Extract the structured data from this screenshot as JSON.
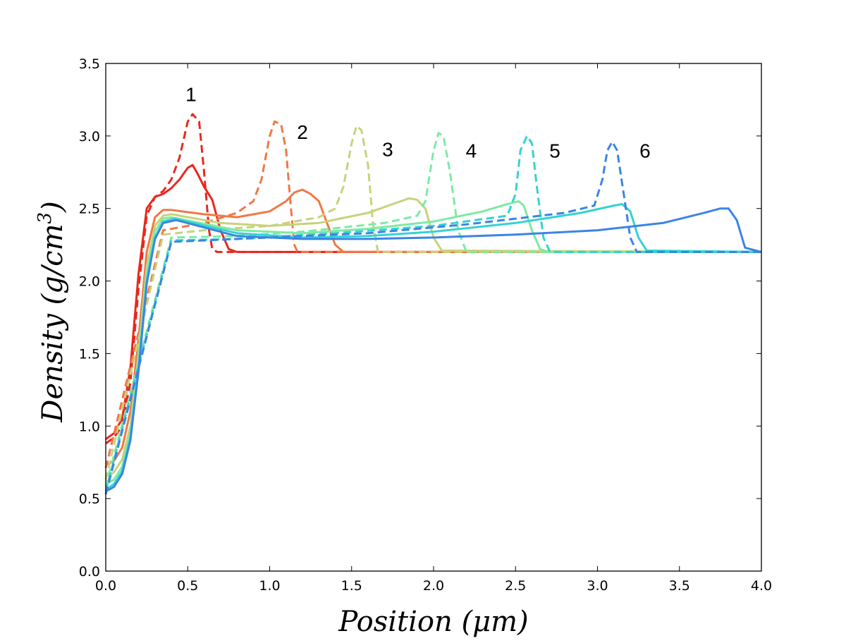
{
  "chart_data": {
    "type": "line",
    "title": "",
    "xlabel": "Position (μm)",
    "ylabel_parts": [
      "Density (g/cm",
      "3",
      ")"
    ],
    "xlim": [
      0.0,
      4.0
    ],
    "ylim": [
      0.0,
      3.5
    ],
    "xticks": [
      0.0,
      0.5,
      1.0,
      1.5,
      2.0,
      2.5,
      3.0,
      3.5,
      4.0
    ],
    "yticks": [
      0.0,
      0.5,
      1.0,
      1.5,
      2.0,
      2.5,
      3.0,
      3.5
    ],
    "xtick_labels": [
      "0.0",
      "0.5",
      "1.0",
      "1.5",
      "2.0",
      "2.5",
      "3.0",
      "3.5",
      "4.0"
    ],
    "ytick_labels": [
      "0.0",
      "0.5",
      "1.0",
      "1.5",
      "2.0",
      "2.5",
      "3.0",
      "3.5"
    ],
    "series": [
      {
        "name": "solid-1",
        "style": "solid",
        "color": "#e8281e",
        "x": [
          0.0,
          0.05,
          0.1,
          0.15,
          0.2,
          0.25,
          0.3,
          0.35,
          0.4,
          0.45,
          0.5,
          0.53,
          0.56,
          0.6,
          0.65,
          0.7,
          0.75,
          0.8,
          4.0
        ],
        "y": [
          0.91,
          0.95,
          1.05,
          1.4,
          2.05,
          2.5,
          2.58,
          2.6,
          2.64,
          2.7,
          2.78,
          2.8,
          2.74,
          2.65,
          2.56,
          2.35,
          2.22,
          2.2,
          2.2
        ]
      },
      {
        "name": "dashed-1",
        "style": "dashed",
        "color": "#e8281e",
        "x": [
          0.0,
          0.05,
          0.1,
          0.15,
          0.2,
          0.25,
          0.3,
          0.35,
          0.4,
          0.45,
          0.5,
          0.53,
          0.57,
          0.6,
          0.63,
          0.65,
          0.68,
          4.0
        ],
        "y": [
          0.88,
          0.92,
          1.0,
          1.3,
          1.95,
          2.45,
          2.58,
          2.62,
          2.7,
          2.85,
          3.1,
          3.15,
          3.1,
          2.75,
          2.35,
          2.22,
          2.2,
          2.2
        ]
      },
      {
        "name": "solid-2",
        "style": "solid",
        "color": "#f07845",
        "x": [
          0.0,
          0.05,
          0.1,
          0.15,
          0.2,
          0.25,
          0.3,
          0.35,
          0.4,
          0.6,
          0.8,
          1.0,
          1.1,
          1.15,
          1.2,
          1.25,
          1.3,
          1.35,
          1.4,
          1.45,
          4.0
        ],
        "y": [
          0.73,
          0.76,
          0.85,
          1.1,
          1.6,
          2.2,
          2.44,
          2.49,
          2.49,
          2.46,
          2.44,
          2.48,
          2.55,
          2.61,
          2.63,
          2.6,
          2.55,
          2.4,
          2.25,
          2.2,
          2.2
        ]
      },
      {
        "name": "dashed-2",
        "style": "dashed",
        "color": "#f07845",
        "x": [
          0.0,
          0.35,
          0.6,
          0.8,
          0.9,
          0.95,
          1.0,
          1.03,
          1.07,
          1.1,
          1.13,
          1.15,
          1.17,
          4.0
        ],
        "y": [
          0.71,
          2.35,
          2.4,
          2.47,
          2.55,
          2.7,
          3.0,
          3.1,
          3.08,
          2.9,
          2.5,
          2.25,
          2.2,
          2.2
        ]
      },
      {
        "name": "solid-3",
        "style": "solid",
        "color": "#c8d27a",
        "x": [
          0.0,
          0.05,
          0.1,
          0.15,
          0.2,
          0.25,
          0.3,
          0.35,
          0.4,
          0.7,
          1.0,
          1.3,
          1.6,
          1.75,
          1.85,
          1.9,
          1.95,
          2.0,
          2.05,
          4.0
        ],
        "y": [
          0.65,
          0.68,
          0.77,
          1.0,
          1.5,
          2.1,
          2.38,
          2.45,
          2.46,
          2.4,
          2.38,
          2.4,
          2.47,
          2.53,
          2.57,
          2.56,
          2.5,
          2.3,
          2.21,
          2.2
        ]
      },
      {
        "name": "dashed-3",
        "style": "dashed",
        "color": "#c8d27a",
        "x": [
          0.0,
          0.35,
          0.6,
          1.0,
          1.3,
          1.4,
          1.45,
          1.5,
          1.53,
          1.56,
          1.6,
          1.63,
          1.66,
          4.0
        ],
        "y": [
          0.63,
          2.32,
          2.35,
          2.38,
          2.44,
          2.5,
          2.65,
          2.95,
          3.07,
          3.04,
          2.8,
          2.4,
          2.2,
          2.2
        ]
      },
      {
        "name": "solid-4",
        "style": "solid",
        "color": "#7eeaa3",
        "x": [
          0.0,
          0.05,
          0.1,
          0.15,
          0.2,
          0.25,
          0.3,
          0.35,
          0.4,
          0.8,
          1.2,
          1.6,
          2.0,
          2.3,
          2.45,
          2.52,
          2.55,
          2.6,
          2.65,
          2.7,
          4.0
        ],
        "y": [
          0.6,
          0.63,
          0.72,
          0.95,
          1.45,
          2.05,
          2.34,
          2.43,
          2.44,
          2.35,
          2.33,
          2.36,
          2.41,
          2.48,
          2.53,
          2.55,
          2.52,
          2.35,
          2.22,
          2.2,
          2.2
        ]
      },
      {
        "name": "dashed-4",
        "style": "dashed",
        "color": "#7eeaa3",
        "x": [
          0.0,
          0.4,
          0.8,
          1.2,
          1.7,
          1.9,
          1.95,
          2.0,
          2.03,
          2.06,
          2.1,
          2.15,
          2.2,
          4.0
        ],
        "y": [
          0.58,
          2.3,
          2.31,
          2.34,
          2.4,
          2.45,
          2.55,
          2.9,
          3.02,
          3.0,
          2.75,
          2.35,
          2.2,
          2.2
        ]
      },
      {
        "name": "solid-5",
        "style": "solid",
        "color": "#35d2d2",
        "x": [
          0.0,
          0.05,
          0.1,
          0.15,
          0.2,
          0.25,
          0.3,
          0.35,
          0.42,
          0.8,
          1.2,
          1.6,
          2.0,
          2.5,
          2.9,
          3.1,
          3.15,
          3.2,
          3.25,
          3.3,
          4.0
        ],
        "y": [
          0.56,
          0.6,
          0.69,
          0.92,
          1.4,
          2.0,
          2.3,
          2.41,
          2.43,
          2.33,
          2.3,
          2.31,
          2.34,
          2.4,
          2.47,
          2.52,
          2.53,
          2.48,
          2.3,
          2.21,
          2.2
        ]
      },
      {
        "name": "dashed-5",
        "style": "dashed",
        "color": "#35d2d2",
        "x": [
          0.0,
          0.4,
          0.8,
          1.4,
          2.0,
          2.45,
          2.5,
          2.53,
          2.57,
          2.6,
          2.63,
          2.67,
          2.71,
          4.0
        ],
        "y": [
          0.55,
          2.28,
          2.29,
          2.33,
          2.38,
          2.45,
          2.6,
          2.9,
          3.0,
          2.95,
          2.65,
          2.3,
          2.2,
          2.2
        ]
      },
      {
        "name": "solid-6",
        "style": "solid",
        "color": "#3a84e6",
        "x": [
          0.0,
          0.05,
          0.1,
          0.15,
          0.2,
          0.25,
          0.3,
          0.35,
          0.43,
          0.8,
          1.2,
          1.6,
          2.0,
          2.5,
          3.0,
          3.4,
          3.65,
          3.75,
          3.8,
          3.85,
          3.9,
          4.0
        ],
        "y": [
          0.55,
          0.58,
          0.67,
          0.9,
          1.38,
          1.98,
          2.29,
          2.4,
          2.42,
          2.31,
          2.29,
          2.29,
          2.3,
          2.32,
          2.35,
          2.4,
          2.47,
          2.5,
          2.5,
          2.42,
          2.23,
          2.2
        ]
      },
      {
        "name": "dashed-6",
        "style": "dashed",
        "color": "#3a84e6",
        "x": [
          0.0,
          0.4,
          1.0,
          1.6,
          2.2,
          2.8,
          2.98,
          3.03,
          3.06,
          3.09,
          3.12,
          3.16,
          3.2,
          3.24,
          4.0
        ],
        "y": [
          0.53,
          2.27,
          2.3,
          2.33,
          2.39,
          2.47,
          2.52,
          2.7,
          2.9,
          2.96,
          2.9,
          2.6,
          2.3,
          2.2,
          2.2
        ]
      }
    ],
    "annotations": [
      {
        "text": "1",
        "x": 0.52,
        "y": 3.24
      },
      {
        "text": "2",
        "x": 1.2,
        "y": 2.98
      },
      {
        "text": "3",
        "x": 1.72,
        "y": 2.86
      },
      {
        "text": "4",
        "x": 2.23,
        "y": 2.85
      },
      {
        "text": "5",
        "x": 2.74,
        "y": 2.85
      },
      {
        "text": "6",
        "x": 3.29,
        "y": 2.85
      }
    ]
  }
}
